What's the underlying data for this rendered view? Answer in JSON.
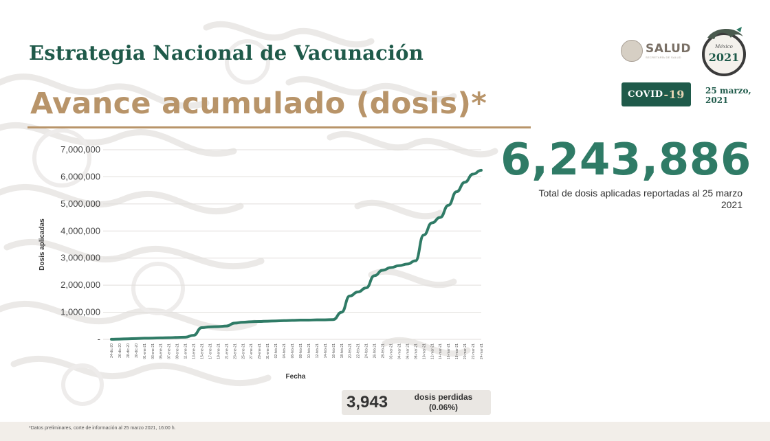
{
  "header": {
    "title": "Estrategia Nacional de Vacunación",
    "subtitle": "Avance acumulado (dosis)*"
  },
  "branding": {
    "salud_name": "SALUD",
    "salud_sub": "SECRETARÍA DE SALUD",
    "mexico_logo_text": "México 2021",
    "covid_label": "COVID",
    "covid_number": "-19",
    "date_line1": "25 marzo,",
    "date_line2": "2021"
  },
  "total": {
    "value": "6,243,886",
    "caption": "Total de dosis aplicadas reportadas al 25 marzo 2021"
  },
  "lost": {
    "value": "3,943",
    "label_line1": "dosis perdidas",
    "label_line2": "(0.06%)"
  },
  "footnote": "*Datos preliminares, corte de información al 25 marzo 2021, 16:00 h.",
  "colors": {
    "primary_green": "#1f5a4a",
    "accent_gold": "#b89469",
    "line": "#2f7b66"
  },
  "chart_data": {
    "type": "line",
    "title": "",
    "xlabel": "Fecha",
    "ylabel": "Dosis aplicadas",
    "ylim": [
      0,
      7000000
    ],
    "ytick_labels": [
      "-",
      "1,000,000",
      "2,000,000",
      "3,000,000",
      "4,000,000",
      "5,000,000",
      "6,000,000",
      "7,000,000"
    ],
    "grid": true,
    "x": [
      "24-dic-20",
      "26-dic-20",
      "28-dic-20",
      "30-dic-20",
      "01-ene-21",
      "03-ene-21",
      "05-ene-21",
      "07-ene-21",
      "09-ene-21",
      "11-ene-21",
      "13-ene-21",
      "15-ene-21",
      "17-ene-21",
      "19-ene-21",
      "21-ene-21",
      "23-ene-21",
      "25-ene-21",
      "27-ene-21",
      "29-ene-21",
      "31-ene-21",
      "02-feb-21",
      "04-feb-21",
      "06-feb-21",
      "08-feb-21",
      "10-feb-21",
      "12-feb-21",
      "14-feb-21",
      "16-feb-21",
      "18-feb-21",
      "20-feb-21",
      "22-feb-21",
      "24-feb-21",
      "26-feb-21",
      "28-feb-21",
      "02-mar-21",
      "04-mar-21",
      "06-mar-21",
      "08-mar-21",
      "10-mar-21",
      "12-mar-21",
      "14-mar-21",
      "16-mar-21",
      "18-mar-21",
      "20-mar-21",
      "22-mar-21",
      "24-mar-21"
    ],
    "series": [
      {
        "values": [
          3000,
          10000,
          20000,
          30000,
          40000,
          45000,
          55000,
          60000,
          70000,
          80000,
          150000,
          430000,
          460000,
          470000,
          490000,
          600000,
          630000,
          650000,
          660000,
          670000,
          680000,
          690000,
          700000,
          710000,
          710000,
          720000,
          720000,
          730000,
          1000000,
          1600000,
          1750000,
          1900000,
          2350000,
          2550000,
          2650000,
          2720000,
          2780000,
          2900000,
          3850000,
          4300000,
          4500000,
          4950000,
          5450000,
          5800000,
          6100000,
          6243886
        ]
      }
    ]
  }
}
